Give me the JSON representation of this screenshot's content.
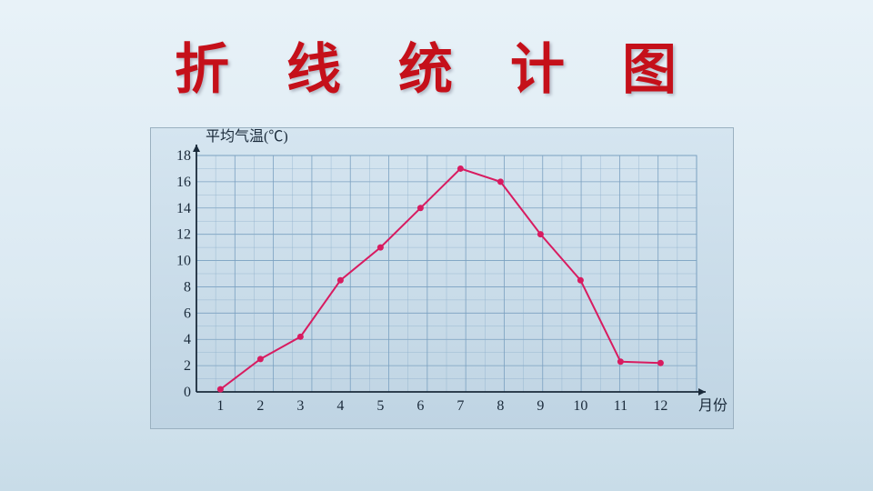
{
  "title": "折 线 统 计 图",
  "chart": {
    "type": "line",
    "ylabel": "平均气温(℃)",
    "xlabel": "月份",
    "categories": [
      "1",
      "2",
      "3",
      "4",
      "5",
      "6",
      "7",
      "8",
      "9",
      "10",
      "11",
      "12"
    ],
    "values": [
      0.2,
      2.5,
      4.2,
      8.5,
      11.0,
      14.0,
      17.0,
      16.0,
      12.0,
      8.5,
      2.3,
      2.2
    ],
    "ylim": [
      0,
      18
    ],
    "ytick_step": 2,
    "ytick_labels": [
      "0",
      "2",
      "4",
      "6",
      "8",
      "10",
      "12",
      "14",
      "16",
      "18"
    ],
    "line_color": "#d81b60",
    "marker_color": "#d81b60",
    "marker_radius": 3.5,
    "line_width": 2,
    "grid_color": "#7aa0c0",
    "grid_minor_color": "#8eb0cc",
    "axis_color": "#1a2a3a",
    "plot_bg_start": "#d5e5f0",
    "plot_bg_end": "#bfd4e3",
    "title_fontsize": 60,
    "title_color": "#c5101a",
    "label_fontsize": 16,
    "tick_fontsize": 16
  }
}
